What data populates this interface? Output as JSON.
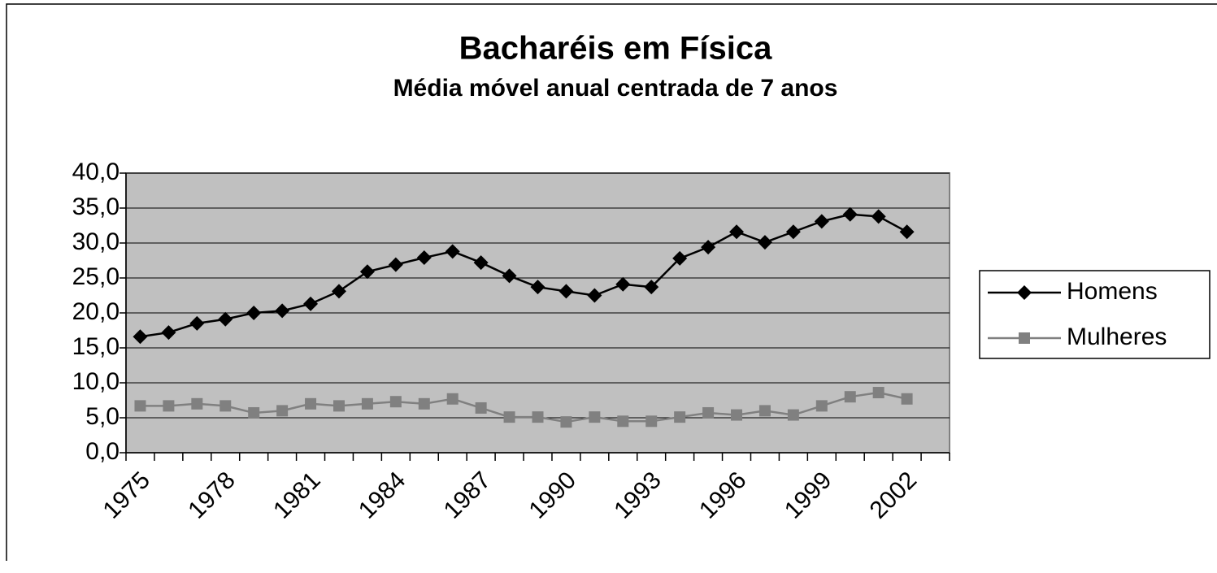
{
  "chart_data": {
    "type": "line",
    "title": "Bacharéis em Física",
    "subtitle": "Média móvel anual centrada de 7 anos",
    "categories": [
      "1975",
      null,
      null,
      "1978",
      null,
      null,
      "1981",
      null,
      null,
      "1984",
      null,
      null,
      "1987",
      null,
      null,
      "1990",
      null,
      null,
      "1993",
      null,
      null,
      "1996",
      null,
      null,
      "1999",
      null,
      null,
      "2002",
      null
    ],
    "series": [
      {
        "name": "Homens",
        "color": "#000000",
        "marker": "diamond",
        "values": [
          16.6,
          17.2,
          18.5,
          19.1,
          20.0,
          20.3,
          21.3,
          23.1,
          25.9,
          26.9,
          27.9,
          28.8,
          27.2,
          25.3,
          23.7,
          23.1,
          22.5,
          24.1,
          23.7,
          27.8,
          29.4,
          31.6,
          30.1,
          31.6,
          33.1,
          34.1,
          33.8,
          31.6,
          null
        ]
      },
      {
        "name": "Mulheres",
        "color": "#808080",
        "marker": "square",
        "values": [
          6.7,
          6.7,
          7.0,
          6.7,
          5.7,
          6.0,
          7.0,
          6.7,
          7.0,
          7.3,
          7.0,
          7.7,
          6.4,
          5.1,
          5.1,
          4.4,
          5.1,
          4.5,
          4.5,
          5.1,
          5.7,
          5.4,
          6.0,
          5.4,
          6.7,
          8.0,
          8.6,
          7.7,
          null
        ]
      }
    ],
    "ylim": [
      0,
      40
    ],
    "yticks": [
      {
        "value": 0,
        "label": "0,0"
      },
      {
        "value": 5,
        "label": "5,0"
      },
      {
        "value": 10,
        "label": "10,0"
      },
      {
        "value": 15,
        "label": "15,0"
      },
      {
        "value": 20,
        "label": "20,0"
      },
      {
        "value": 25,
        "label": "25,0"
      },
      {
        "value": 30,
        "label": "30,0"
      },
      {
        "value": 35,
        "label": "35,0"
      },
      {
        "value": 40,
        "label": "40,0"
      }
    ],
    "grid": true,
    "legend": "right",
    "plot_background": "#c0c0c0"
  }
}
